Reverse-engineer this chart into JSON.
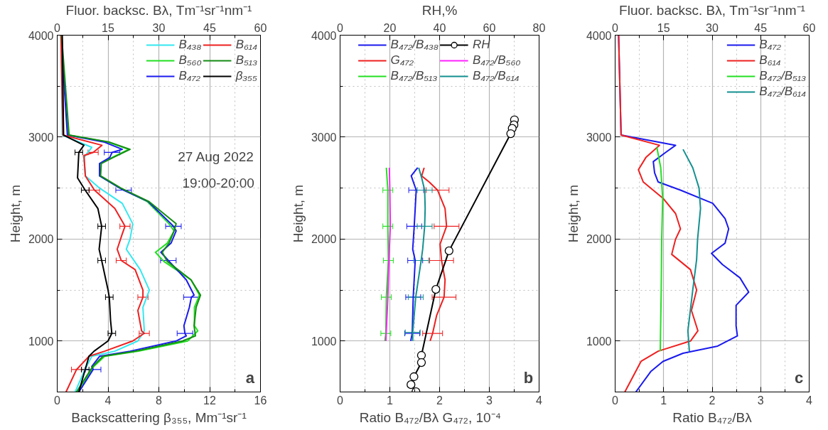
{
  "chart_data": [
    {
      "type": "line",
      "xlabel": "Backscattering β₃₅₅, Mm⁻¹sr⁻¹",
      "x2label": "Fluor. backsc. Bλ, Tm⁻¹sr⁻¹nm⁻¹",
      "ylabel": "Height, m",
      "xlim": [
        0,
        16
      ],
      "xticks": [
        0,
        {
          "value": 2,
          "label": null
        },
        4,
        {
          "value": 6,
          "label": null
        },
        8,
        {
          "value": 10,
          "label": null
        },
        12,
        {
          "value": 14,
          "label": null
        },
        16
      ],
      "x2lim": [
        0,
        60
      ],
      "x2ticks": [
        0,
        {
          "value": 7.5,
          "label": null
        },
        15,
        {
          "value": 22.5,
          "label": null
        },
        30,
        {
          "value": 37.5,
          "label": null
        },
        45,
        {
          "value": 52.5,
          "label": null
        },
        60
      ],
      "ylim": [
        500,
        4000
      ],
      "yticks": [
        {
          "value": 500,
          "label": null
        },
        1000,
        {
          "value": 1500,
          "label": null
        },
        2000,
        {
          "value": 2500,
          "label": null
        },
        3000,
        {
          "value": 3500,
          "label": null
        },
        4000
      ],
      "grid": true,
      "legend": "top right",
      "annotations": [
        "27 Aug 2022",
        "19:00-20:00",
        "a"
      ],
      "series": [
        {
          "name": "B₄₃₈",
          "color": "#33e8f0",
          "axis": "x2",
          "x": [
            1.1,
            1.5,
            10.2,
            7.9,
            8.3,
            12.5,
            19.2,
            22.3,
            21.5,
            20.4,
            24.5,
            27.2,
            25.3,
            25.7,
            23.8,
            17.0,
            10.2,
            7.9,
            5.3
          ],
          "values": [
            4000,
            3020,
            2900,
            2800,
            2620,
            2500,
            2350,
            2150,
            2000,
            1900,
            1700,
            1500,
            1330,
            1100,
            1000,
            900,
            850,
            700,
            500
          ]
        },
        {
          "name": "B₅₆₀",
          "color": "#22e022",
          "axis": "x2",
          "x": [
            1.2,
            3.2,
            15.0,
            21.1,
            16.2,
            12.6,
            12.5,
            18.5,
            26.5,
            33.0,
            34.5,
            32.5,
            29.0,
            31.5,
            39.5,
            42.0,
            40.5,
            40.5,
            41.5,
            38.5,
            24.0,
            14.0,
            10.8,
            6.0
          ],
          "values": [
            4000,
            3020,
            2950,
            2880,
            2800,
            2740,
            2620,
            2500,
            2370,
            2150,
            2080,
            1960,
            1870,
            1780,
            1600,
            1450,
            1330,
            1150,
            1100,
            1000,
            900,
            850,
            750,
            500
          ]
        },
        {
          "name": "B₄₇₂",
          "color": "#1a1aee",
          "axis": "x2",
          "x": [
            1.1,
            3.0,
            14.0,
            19.2,
            16.2,
            15.5,
            12.5,
            12.5,
            18.5,
            19.6,
            26.8,
            33.6,
            34.3,
            35.1,
            33.6,
            30.6,
            32.8,
            38.1,
            40.4,
            39.6,
            39.0,
            37.4,
            37.7,
            38.1,
            35.1,
            21.5,
            12.5,
            10.2,
            10.6,
            6.4
          ],
          "values": [
            4000,
            3020,
            2950,
            2880,
            2850,
            2800,
            2740,
            2620,
            2500,
            2480,
            2370,
            2150,
            2125,
            2080,
            1960,
            1870,
            1790,
            1600,
            1450,
            1430,
            1330,
            1150,
            1075,
            1050,
            1000,
            900,
            850,
            750,
            720,
            500
          ],
          "xerrors": [
            null,
            null,
            null,
            null,
            2.3,
            null,
            null,
            null,
            null,
            2.3,
            null,
            null,
            2.3,
            null,
            null,
            null,
            2.3,
            null,
            null,
            2.3,
            null,
            null,
            2.3,
            null,
            null,
            null,
            null,
            null,
            2.3,
            null
          ]
        },
        {
          "name": "B₆₁₄",
          "color": "#ee2020",
          "axis": "x2",
          "x": [
            1.1,
            1.7,
            13.2,
            10.6,
            7.9,
            8.3,
            11.0,
            17.0,
            19.6,
            20.0,
            19.2,
            17.7,
            18.9,
            23.0,
            25.3,
            25.3,
            23.8,
            24.9,
            25.7,
            22.3,
            14.0,
            9.4,
            5.7,
            2.6
          ],
          "values": [
            4000,
            3020,
            2920,
            2850,
            2820,
            2620,
            2480,
            2300,
            2150,
            2125,
            2050,
            1900,
            1790,
            1700,
            1500,
            1430,
            1300,
            1100,
            1075,
            1000,
            900,
            850,
            720,
            500
          ],
          "xerrors": [
            null,
            null,
            null,
            1.5,
            null,
            null,
            1.5,
            null,
            null,
            1.5,
            null,
            null,
            1.5,
            null,
            null,
            1.5,
            null,
            null,
            1.5,
            null,
            null,
            null,
            1.5,
            null
          ]
        },
        {
          "name": "B₅₁₃",
          "color": "#148c14",
          "axis": "x2",
          "x": [
            1.3,
            3.5,
            15.5,
            21.5,
            16.5,
            13.0,
            12.8,
            18.8,
            27.0,
            35.1,
            34.5,
            33.0,
            31.0,
            32.5,
            39.5,
            42.3,
            41.0,
            40.4,
            40.8,
            37.0,
            23.0,
            13.5,
            10.5,
            5.7
          ],
          "values": [
            4000,
            3020,
            2950,
            2880,
            2800,
            2740,
            2620,
            2500,
            2370,
            2150,
            2080,
            1960,
            1870,
            1780,
            1600,
            1450,
            1330,
            1150,
            1050,
            1000,
            900,
            850,
            750,
            500
          ]
        },
        {
          "name": "β₃₅₅",
          "color": "#000000",
          "x": [
            0.4,
            0.5,
            2.1,
            1.7,
            1.6,
            2.2,
            3.2,
            3.5,
            3.3,
            3.5,
            4.0,
            4.1,
            4.2,
            4.3,
            4.0,
            2.9,
            2.5,
            2.2,
            1.7
          ],
          "values": [
            4000,
            3020,
            2920,
            2850,
            2600,
            2480,
            2300,
            2125,
            1900,
            1790,
            1500,
            1430,
            1200,
            1075,
            1000,
            900,
            850,
            720,
            500
          ],
          "xerrors": [
            null,
            null,
            null,
            0.3,
            null,
            0.3,
            null,
            0.3,
            null,
            0.3,
            null,
            0.3,
            null,
            0.3,
            null,
            null,
            null,
            0.3,
            null
          ]
        }
      ]
    },
    {
      "type": "line",
      "xlabel": "Ratio B₄₇₂/Bλ      G₄₇₂, 10⁻⁴",
      "x2label": "RH,%",
      "ylabel": "Height, m",
      "xlim": [
        0,
        4
      ],
      "xticks": [
        0,
        {
          "value": 0.5,
          "label": null
        },
        1,
        {
          "value": 1.5,
          "label": null
        },
        2,
        {
          "value": 2.5,
          "label": null
        },
        3,
        {
          "value": 3.5,
          "label": null
        },
        4
      ],
      "x2lim": [
        0,
        80
      ],
      "x2ticks": [
        0,
        {
          "value": 10,
          "label": null
        },
        20,
        {
          "value": 30,
          "label": null
        },
        40,
        {
          "value": 50,
          "label": null
        },
        60,
        {
          "value": 70,
          "label": null
        },
        80
      ],
      "ylim": [
        500,
        4000
      ],
      "yticks": [
        {
          "value": 500,
          "label": null
        },
        1000,
        {
          "value": 1500,
          "label": null
        },
        2000,
        {
          "value": 2500,
          "label": null
        },
        3000,
        {
          "value": 3500,
          "label": null
        },
        4000
      ],
      "grid": true,
      "legend": "top",
      "annotations": [
        "b"
      ],
      "series": [
        {
          "name": "B₄₇₂/B₄₃₈",
          "color": "#1a1aee",
          "x": [
            1.56,
            1.43,
            1.53,
            1.51,
            1.49,
            1.46,
            1.51,
            1.47,
            1.45,
            1.42
          ],
          "values": [
            2700,
            2620,
            2480,
            2300,
            2125,
            1900,
            1790,
            1430,
            1075,
            1000
          ],
          "xerrors": [
            null,
            null,
            0.15,
            null,
            0.15,
            null,
            0.15,
            0.15,
            0.15,
            null
          ]
        },
        {
          "name": "G₄₇₂",
          "color": "#ee2020",
          "x": [
            1.69,
            1.64,
            1.79,
            1.96,
            2.11,
            2.14,
            2.01,
            2.04,
            2.11,
            2.09,
            1.94,
            1.86,
            1.81
          ],
          "values": [
            2700,
            2620,
            2560,
            2480,
            2300,
            2125,
            1950,
            1790,
            1600,
            1430,
            1250,
            1075,
            1000
          ],
          "xerrors": [
            null,
            null,
            null,
            0.23,
            null,
            0.25,
            null,
            0.24,
            null,
            0.24,
            null,
            0.2,
            null
          ]
        },
        {
          "name": "B₄₇₂/B₅₁₃",
          "color": "#22e022",
          "x": [
            0.93,
            0.96,
            0.96,
            0.97,
            0.93,
            0.92,
            0.9
          ],
          "values": [
            2700,
            2480,
            2125,
            1790,
            1430,
            1075,
            1000
          ],
          "xerrors": [
            null,
            0.1,
            0.1,
            0.1,
            0.1,
            0.1,
            null
          ]
        },
        {
          "name": "RH",
          "color": "#000000",
          "axis": "x2",
          "marker": "circle",
          "x": [
            70.1,
            69.9,
            69.2,
            68.6,
            43.8,
            38.5,
            32.7,
            32.7,
            29.7,
            28.5,
            30.5
          ],
          "values": [
            3170,
            3120,
            3086,
            3034,
            1885,
            1507,
            859,
            789,
            650,
            572,
            502
          ]
        },
        {
          "name": "B₄₇₂/B₅₆₀",
          "color": "#ff22ff",
          "x": [
            0.99,
            1.0,
            1.01,
            0.98,
            0.96,
            0.92
          ],
          "values": [
            2700,
            2480,
            2125,
            1790,
            1430,
            1000
          ]
        },
        {
          "name": "B₄₇₂/B₆₁₄",
          "color": "#149090",
          "x": [
            1.58,
            1.64,
            1.7,
            1.71,
            1.7,
            1.66,
            1.63,
            1.52,
            1.46,
            1.46
          ],
          "values": [
            2700,
            2600,
            2480,
            2300,
            2125,
            1900,
            1790,
            1430,
            1085,
            1000
          ],
          "xerrors": [
            null,
            null,
            0.15,
            null,
            0.15,
            null,
            0.15,
            0.15,
            0.15,
            null
          ]
        }
      ]
    },
    {
      "type": "line",
      "xlabel": "Ratio B₄₇₂/Bλ",
      "x2label": "Fluor. backsc. Bλ, Tm⁻¹sr⁻¹nm⁻¹",
      "ylabel": "Height, m",
      "xlim": [
        0,
        4
      ],
      "xticks": [
        0,
        {
          "value": 0.5,
          "label": null
        },
        1,
        {
          "value": 1.5,
          "label": null
        },
        2,
        {
          "value": 2.5,
          "label": null
        },
        3,
        {
          "value": 3.5,
          "label": null
        },
        4
      ],
      "x2lim": [
        0,
        60
      ],
      "x2ticks": [
        0,
        {
          "value": 7.5,
          "label": null
        },
        15,
        {
          "value": 22.5,
          "label": null
        },
        30,
        {
          "value": 37.5,
          "label": null
        },
        45,
        {
          "value": 52.5,
          "label": null
        },
        60
      ],
      "ylim": [
        500,
        4000
      ],
      "yticks": [
        {
          "value": 500,
          "label": null
        },
        1000,
        {
          "value": 1500,
          "label": null
        },
        2000,
        {
          "value": 2500,
          "label": null
        },
        3000,
        {
          "value": 3500,
          "label": null
        },
        4000
      ],
      "grid": true,
      "legend": "top right",
      "annotations": [
        "c"
      ],
      "series": [
        {
          "name": "B₄₇₂",
          "color": "#1a1aee",
          "axis": "x2",
          "x": [
            1.07,
            1.84,
            18.7,
            15.6,
            11.8,
            12.2,
            13.3,
            20.2,
            30.2,
            34.0,
            35.1,
            34.0,
            29.8,
            33.2,
            38.6,
            41.3,
            37.4,
            37.4,
            37.8,
            31.7,
            21.0,
            14.8,
            11.0,
            6.4
          ],
          "values": [
            4000,
            3020,
            2920,
            2850,
            2760,
            2650,
            2560,
            2480,
            2350,
            2200,
            2100,
            1960,
            1860,
            1750,
            1620,
            1480,
            1350,
            1150,
            1050,
            950,
            880,
            800,
            700,
            500
          ]
        },
        {
          "name": "B₆₁₄",
          "color": "#ee2020",
          "axis": "x2",
          "x": [
            1.07,
            1.84,
            13.7,
            9.5,
            7.2,
            8.7,
            14.8,
            18.7,
            20.2,
            18.7,
            17.5,
            23.3,
            25.2,
            23.6,
            25.6,
            23.3,
            13.3,
            8.0,
            3.0
          ],
          "values": [
            4000,
            3020,
            2920,
            2800,
            2680,
            2560,
            2400,
            2250,
            2100,
            2000,
            1850,
            1700,
            1500,
            1300,
            1100,
            1000,
            900,
            800,
            500
          ]
        },
        {
          "name": "B₄₇₂/B₅₁₃",
          "color": "#22e022",
          "x": [
            0.86,
            0.94,
            0.98,
            0.96,
            0.95,
            0.93
          ],
          "values": [
            2900,
            2700,
            2400,
            2000,
            1500,
            900
          ]
        },
        {
          "name": "B₄₇₂/B₆₁₄",
          "color": "#149090",
          "x": [
            1.4,
            1.6,
            1.73,
            1.76,
            1.7,
            1.68,
            1.6,
            1.55,
            1.5,
            1.53
          ],
          "values": [
            2880,
            2700,
            2500,
            2300,
            2000,
            1800,
            1500,
            1300,
            1100,
            900
          ]
        }
      ]
    }
  ]
}
